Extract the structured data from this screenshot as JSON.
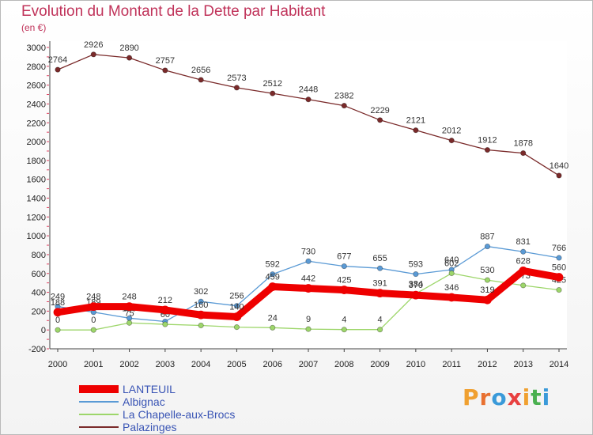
{
  "header": {
    "title": "Evolution du Montant de la Dette par Habitant",
    "subtitle": "(en €)"
  },
  "brand": {
    "letters": [
      "P",
      "r",
      "o",
      "x",
      "i",
      "t",
      "i"
    ],
    "colors": [
      "#f0a030",
      "#e87030",
      "#3a9ad9",
      "#e84040",
      "#f0a030",
      "#4ab050",
      "#3a9ad9"
    ]
  },
  "chart_data": {
    "type": "line",
    "title": "Evolution du Montant de la Dette par Habitant",
    "subtitle": "(en €)",
    "xlabel": "",
    "ylabel": "",
    "x": [
      "2000",
      "2001",
      "2002",
      "2003",
      "2004",
      "2005",
      "2006",
      "2007",
      "2008",
      "2009",
      "2010",
      "2011",
      "2012",
      "2013",
      "2014"
    ],
    "ylim": [
      -200,
      3000
    ],
    "yticks": [
      -200,
      0,
      200,
      400,
      600,
      800,
      1000,
      1200,
      1400,
      1600,
      1800,
      2000,
      2200,
      2400,
      2600,
      2800,
      3000
    ],
    "grid": false,
    "legend_position": "bottom-left",
    "series": [
      {
        "name": "Palazinges",
        "color": "#7a2a2a",
        "values": [
          2764,
          2926,
          2890,
          2757,
          2656,
          2573,
          2512,
          2448,
          2382,
          2229,
          2121,
          2012,
          1912,
          1878,
          1640
        ],
        "labels": [
          "2764",
          "2926",
          "2890",
          "2757",
          "2656",
          "2573",
          "2512",
          "2448",
          "2382",
          "2229",
          "2121",
          "2012",
          "1912",
          "1878",
          "1640"
        ]
      },
      {
        "name": "Albignac",
        "color": "#5a9ad5",
        "values": [
          249,
          189,
          125,
          90,
          302,
          256,
          592,
          730,
          677,
          655,
          593,
          640,
          887,
          831,
          766
        ],
        "labels": [
          "249",
          "189",
          "125",
          "90",
          "302",
          "256",
          "592",
          "730",
          "677",
          "655",
          "593",
          "640",
          "887",
          "831",
          "766"
        ]
      },
      {
        "name": "La Chapelle-aux-Brocs",
        "color": "#9dd66a",
        "values": [
          0,
          0,
          75,
          60,
          48,
          30,
          24,
          9,
          4,
          4,
          384,
          602,
          530,
          473,
          425
        ],
        "labels": [
          "0",
          "0",
          "75",
          "60",
          "48",
          "30",
          "24",
          "9",
          "4",
          "4",
          "384",
          "602",
          "530",
          "473",
          "425"
        ]
      },
      {
        "name": "LANTEUIL",
        "color": "#ee0000",
        "values": [
          188,
          248,
          248,
          212,
          160,
          140,
          459,
          442,
          425,
          391,
          370,
          346,
          319,
          628,
          560
        ],
        "labels": [
          "188",
          "248",
          "248",
          "212",
          "160",
          "140",
          "459",
          "442",
          "425",
          "391",
          "370",
          "346",
          "319",
          "628",
          "560"
        ]
      }
    ]
  }
}
